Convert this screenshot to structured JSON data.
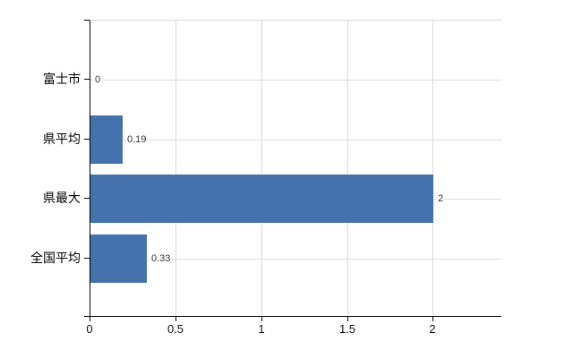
{
  "chart_data": {
    "type": "bar",
    "orientation": "horizontal",
    "title": "",
    "xlabel": "",
    "ylabel": "",
    "categories": [
      "富士市",
      "県平均",
      "県最大",
      "全国平均"
    ],
    "values": [
      0,
      0.19,
      2,
      0.33
    ],
    "value_labels": [
      "0",
      "0.19",
      "2",
      "0.33"
    ],
    "x_ticks": [
      0,
      0.5,
      1,
      1.5,
      2
    ],
    "x_tick_labels": [
      "0",
      "0.5",
      "1",
      "1.5",
      "2"
    ],
    "xlim": [
      0,
      2.4
    ],
    "grid": true,
    "legend": false,
    "bar_color": "#4472ad",
    "grid_color": "#d9d9d9",
    "axis_color": "#000000",
    "value_label_color": "#333333"
  }
}
